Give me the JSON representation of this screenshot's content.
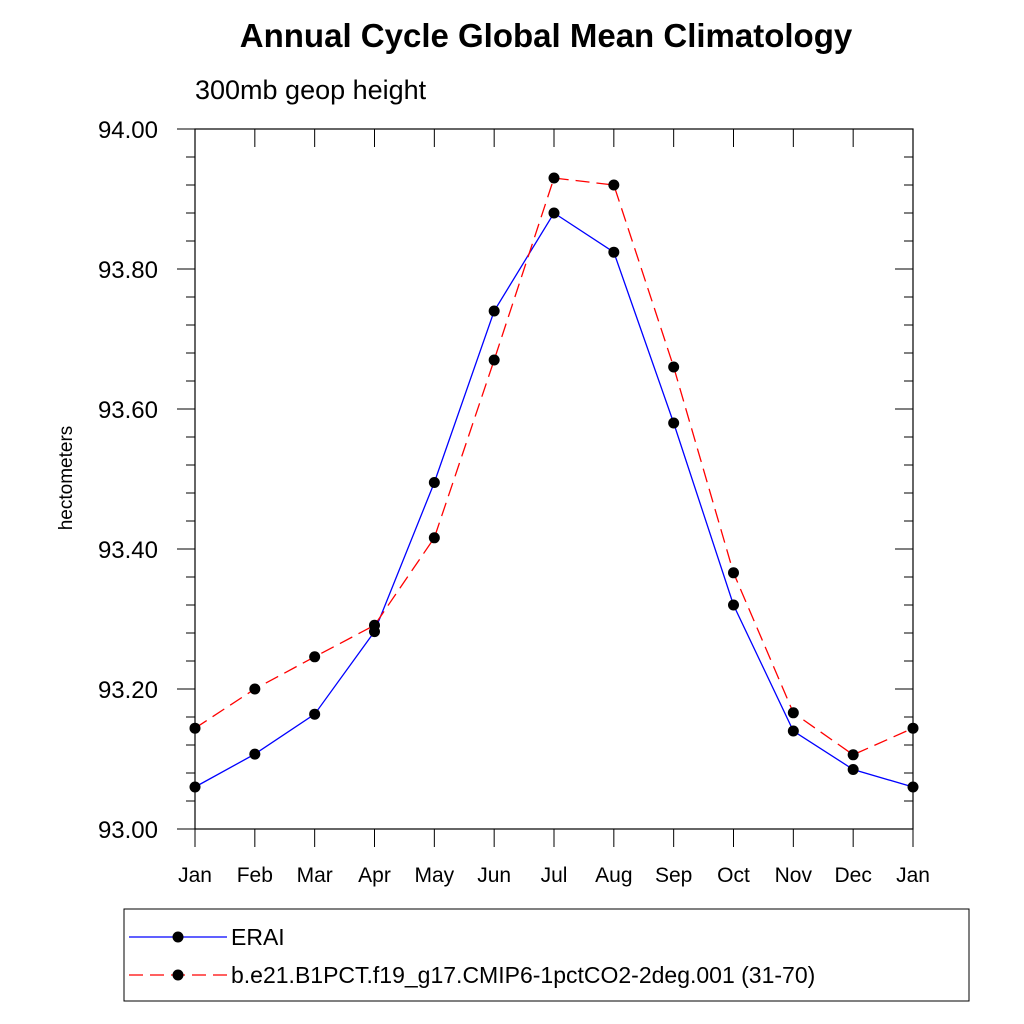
{
  "chart_data": {
    "type": "line",
    "title": "Annual Cycle Global Mean Climatology",
    "subtitle": "300mb geop height",
    "xlabel": "",
    "ylabel": "hectometers",
    "categories": [
      "Jan",
      "Feb",
      "Mar",
      "Apr",
      "May",
      "Jun",
      "Jul",
      "Aug",
      "Sep",
      "Oct",
      "Nov",
      "Dec",
      "Jan"
    ],
    "ylim": [
      93.0,
      94.0
    ],
    "yticks": [
      "93.00",
      "93.20",
      "93.40",
      "93.60",
      "93.80",
      "94.00"
    ],
    "ytick_values": [
      93.0,
      93.2,
      93.4,
      93.6,
      93.8,
      94.0
    ],
    "grid": false,
    "legend_position": "bottom",
    "series": [
      {
        "name": "ERAI",
        "color": "#0000ff",
        "line_style": "solid",
        "marker": "filled-circle",
        "values": [
          93.06,
          93.107,
          93.164,
          93.282,
          93.495,
          93.74,
          93.88,
          93.824,
          93.58,
          93.32,
          93.14,
          93.085,
          93.06
        ]
      },
      {
        "name": "b.e21.B1PCT.f19_g17.CMIP6-1pctCO2-2deg.001 (31-70)",
        "color": "#ff0000",
        "line_style": "dashed",
        "marker": "filled-circle",
        "values": [
          93.144,
          93.2,
          93.246,
          93.291,
          93.416,
          93.67,
          93.93,
          93.92,
          93.66,
          93.366,
          93.166,
          93.106,
          93.144
        ]
      }
    ]
  }
}
